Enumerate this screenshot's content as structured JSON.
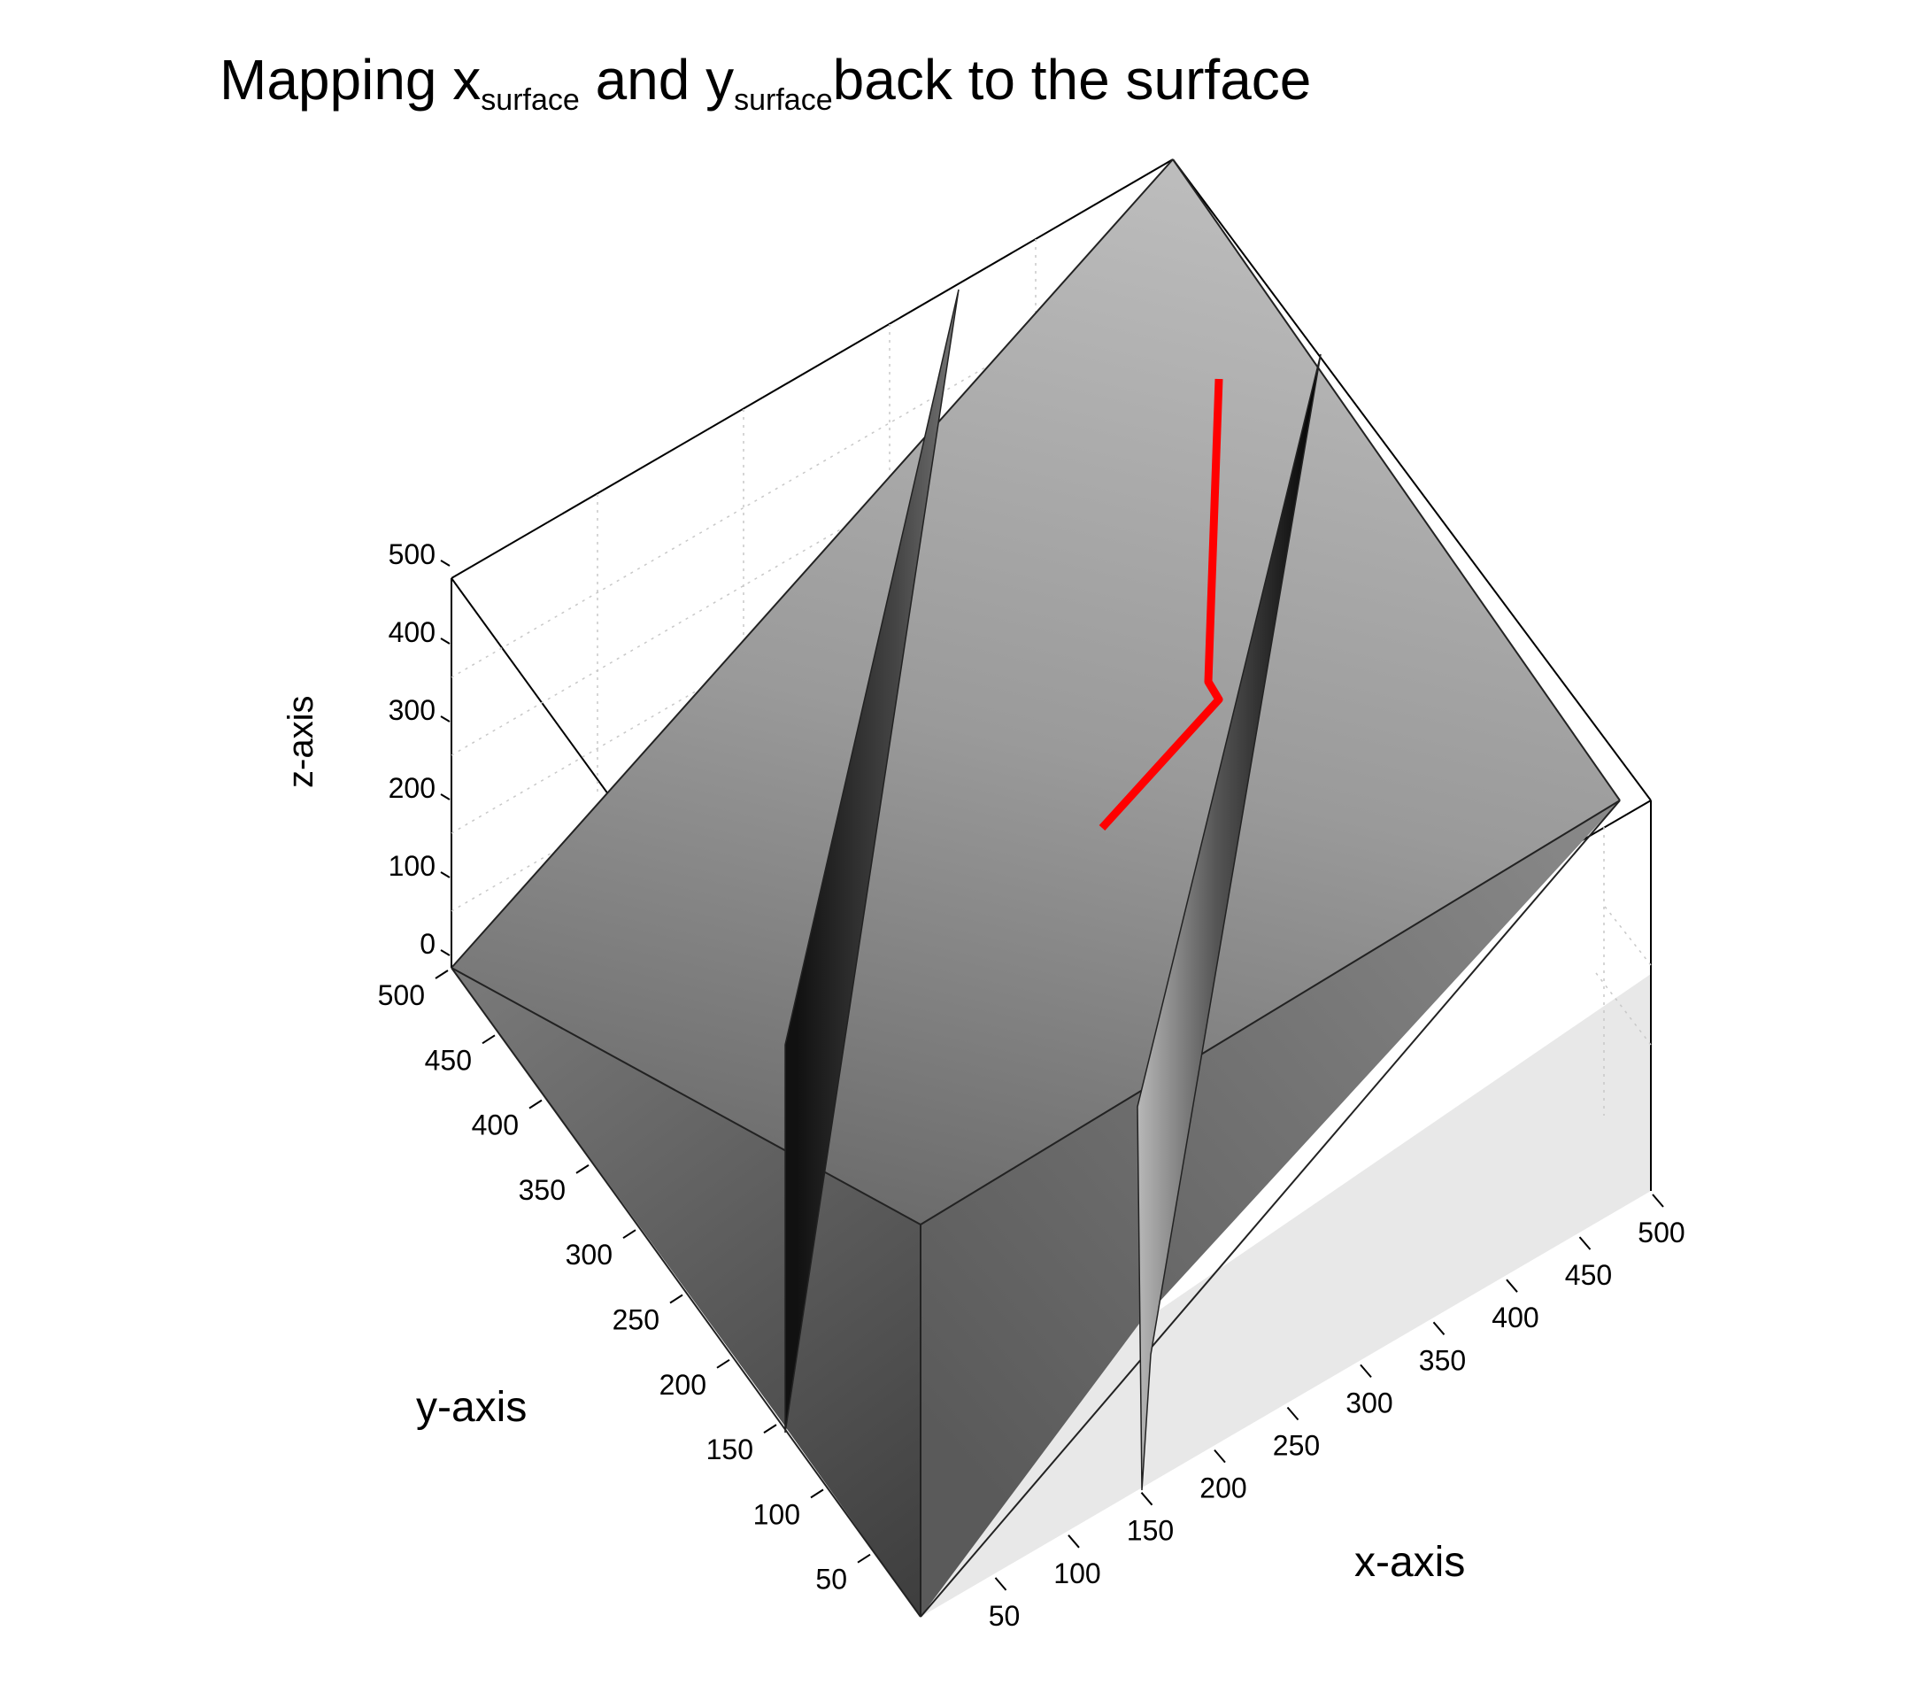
{
  "chart_data": {
    "type": "surface-3d",
    "title": {
      "part1": "Mapping x",
      "sub1": "surface",
      "part2": " and y",
      "sub2": "surface",
      "part3": "back to the surface"
    },
    "xlabel": "x-axis",
    "ylabel": "y-axis",
    "zlabel": "z-axis",
    "xlim": [
      0,
      500
    ],
    "ylim": [
      0,
      500
    ],
    "zlim": [
      0,
      500
    ],
    "x_ticks": [
      "50",
      "100",
      "150",
      "200",
      "250",
      "300",
      "350",
      "400",
      "450",
      "500"
    ],
    "y_ticks": [
      "50",
      "100",
      "150",
      "200",
      "250",
      "300",
      "350",
      "400",
      "450",
      "500"
    ],
    "z_ticks": [
      "0",
      "100",
      "200",
      "300",
      "400",
      "500"
    ],
    "grid": true,
    "surface_color": "#8c8c8c",
    "path_color": "#ff0000"
  }
}
